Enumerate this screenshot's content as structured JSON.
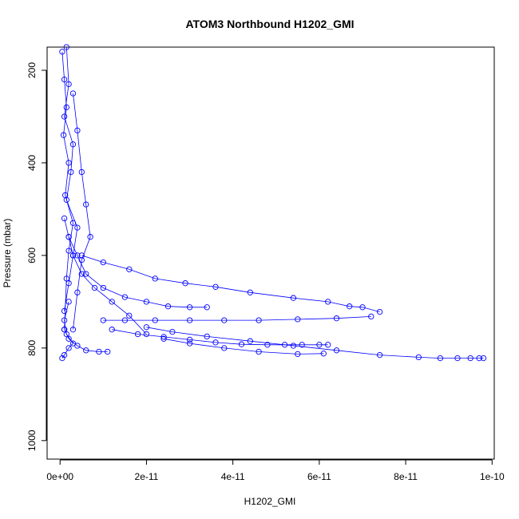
{
  "chart_data": {
    "type": "line",
    "title": "ATOM3 Northbound H1202_GMI",
    "xlabel": "H1202_GMI",
    "ylabel": "Pressure (mbar)",
    "xlim": [
      -3e-12,
      1.005e-10
    ],
    "ylim": [
      1040,
      150
    ],
    "y_reversed": true,
    "x_ticks": [
      0,
      2e-11,
      4e-11,
      6e-11,
      8e-11,
      1e-10
    ],
    "x_tick_labels": [
      "0e+00",
      "2e-11",
      "4e-11",
      "6e-11",
      "8e-11",
      "1e-10"
    ],
    "y_ticks": [
      200,
      400,
      600,
      800,
      1000
    ],
    "y_tick_labels": [
      "200",
      "400",
      "600",
      "800",
      "1000"
    ],
    "grid": false,
    "color": "#0000ff",
    "marker": "open-circle",
    "series": [
      {
        "x": [
          1.5e-12,
          2e-12,
          1e-12,
          3e-12,
          2.5e-12,
          1.5e-12,
          4e-12,
          3e-12,
          2e-12,
          1e-12
        ],
        "y": [
          150,
          230,
          300,
          360,
          420,
          480,
          540,
          600,
          660,
          720
        ]
      },
      {
        "x": [
          5e-13,
          1e-12,
          1.5e-12,
          8e-13,
          2e-12,
          1.2e-12,
          3e-12,
          2e-12,
          1.5e-12,
          1e-12
        ],
        "y": [
          160,
          220,
          280,
          340,
          400,
          470,
          530,
          590,
          650,
          760
        ]
      },
      {
        "x": [
          3e-12,
          4e-12,
          5e-12,
          6e-12,
          7e-12,
          5e-12,
          4e-12,
          3e-12
        ],
        "y": [
          250,
          330,
          420,
          490,
          560,
          610,
          680,
          760
        ]
      },
      {
        "x": [
          1e-12,
          2e-12,
          3e-12,
          5e-12,
          8e-12,
          1.2e-11,
          1.6e-11,
          2e-11
        ],
        "y": [
          520,
          560,
          600,
          640,
          670,
          700,
          730,
          770
        ]
      },
      {
        "x": [
          2e-12,
          4e-12,
          6e-12,
          1e-11,
          1.5e-11,
          2e-11,
          2.5e-11,
          3e-11,
          3.4e-11
        ],
        "y": [
          560,
          600,
          640,
          670,
          690,
          700,
          710,
          712,
          712
        ]
      },
      {
        "x": [
          5e-12,
          1e-11,
          1.6e-11,
          2.2e-11,
          2.9e-11,
          3.6e-11,
          4.4e-11,
          5.4e-11,
          6.2e-11,
          6.7e-11,
          7e-11,
          7.4e-11
        ],
        "y": [
          600,
          615,
          630,
          650,
          660,
          668,
          680,
          692,
          700,
          710,
          712,
          722
        ]
      },
      {
        "x": [
          1e-11,
          1.5e-11,
          2.2e-11,
          3e-11,
          3.8e-11,
          4.6e-11,
          5.5e-11,
          6.4e-11,
          7.2e-11
        ],
        "y": [
          740,
          740,
          740,
          740,
          740,
          740,
          738,
          736,
          732
        ]
      },
      {
        "x": [
          1.2e-11,
          1.8e-11,
          2.4e-11,
          3e-11,
          3.6e-11,
          4.2e-11,
          4.8e-11,
          5.2e-11,
          5.6e-11,
          6e-11,
          6.2e-11
        ],
        "y": [
          760,
          770,
          776,
          782,
          788,
          792,
          793,
          793,
          793,
          793,
          793
        ]
      },
      {
        "x": [
          2e-11,
          2.6e-11,
          3.4e-11,
          4.4e-11,
          5.4e-11,
          6.4e-11,
          7.4e-11,
          8.3e-11,
          8.8e-11,
          9.2e-11,
          9.5e-11,
          9.7e-11,
          9.8e-11
        ],
        "y": [
          755,
          765,
          775,
          785,
          795,
          805,
          815,
          820,
          822,
          822,
          822,
          822,
          822
        ]
      },
      {
        "x": [
          2.4e-11,
          3e-11,
          3.8e-11,
          4.6e-11,
          5.5e-11,
          6.1e-11
        ],
        "y": [
          780,
          790,
          800,
          808,
          813,
          812
        ]
      },
      {
        "x": [
          1e-12,
          2e-12,
          4e-12,
          6e-12,
          9e-12,
          1.1e-11
        ],
        "y": [
          760,
          780,
          795,
          805,
          808,
          808
        ]
      },
      {
        "x": [
          2e-12,
          1e-12,
          1.5e-12,
          3e-12,
          2e-12,
          1e-12,
          5e-13
        ],
        "y": [
          700,
          740,
          770,
          790,
          800,
          815,
          822
        ]
      }
    ]
  }
}
